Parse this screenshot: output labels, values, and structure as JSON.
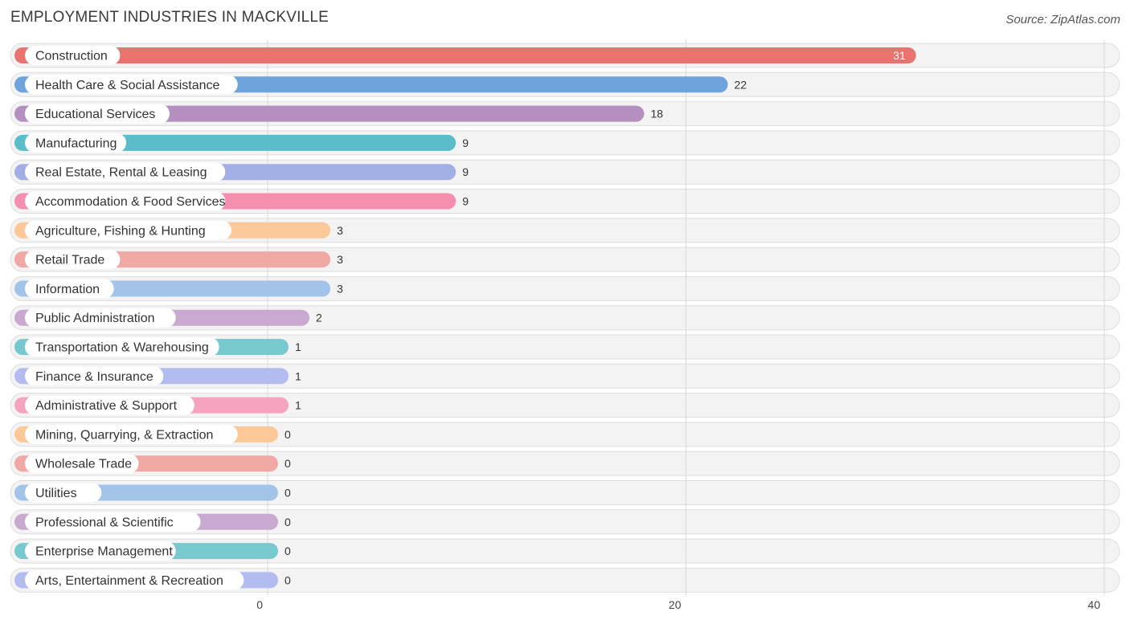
{
  "title": "EMPLOYMENT INDUSTRIES IN MACKVILLE",
  "source": "Source: ZipAtlas.com",
  "chart_data": {
    "type": "bar",
    "orientation": "horizontal",
    "title": "EMPLOYMENT INDUSTRIES IN MACKVILLE",
    "xlabel": "",
    "ylabel": "",
    "xlim": [
      0,
      40
    ],
    "xticks": [
      0,
      20,
      40
    ],
    "grid": true,
    "categories": [
      "Construction",
      "Health Care & Social Assistance",
      "Educational Services",
      "Manufacturing",
      "Real Estate, Rental & Leasing",
      "Accommodation & Food Services",
      "Agriculture, Fishing & Hunting",
      "Retail Trade",
      "Information",
      "Public Administration",
      "Transportation & Warehousing",
      "Finance & Insurance",
      "Administrative & Support",
      "Mining, Quarrying, & Extraction",
      "Wholesale Trade",
      "Utilities",
      "Professional & Scientific",
      "Enterprise Management",
      "Arts, Entertainment & Recreation"
    ],
    "values": [
      31,
      22,
      18,
      9,
      9,
      9,
      3,
      3,
      3,
      2,
      1,
      1,
      1,
      0,
      0,
      0,
      0,
      0,
      0
    ],
    "colors": [
      "#e8736f",
      "#6fa3dc",
      "#b48fc0",
      "#5bbdc8",
      "#a2aee6",
      "#f58fb0",
      "#fcc898",
      "#f0a8a4",
      "#a3c4ea",
      "#c9a9d0",
      "#78c9cf",
      "#b3bcef",
      "#f5a3bf",
      "#fcc898",
      "#f0a8a4",
      "#a3c4ea",
      "#c9a9d0",
      "#78c9cf",
      "#b3bcef"
    ]
  }
}
